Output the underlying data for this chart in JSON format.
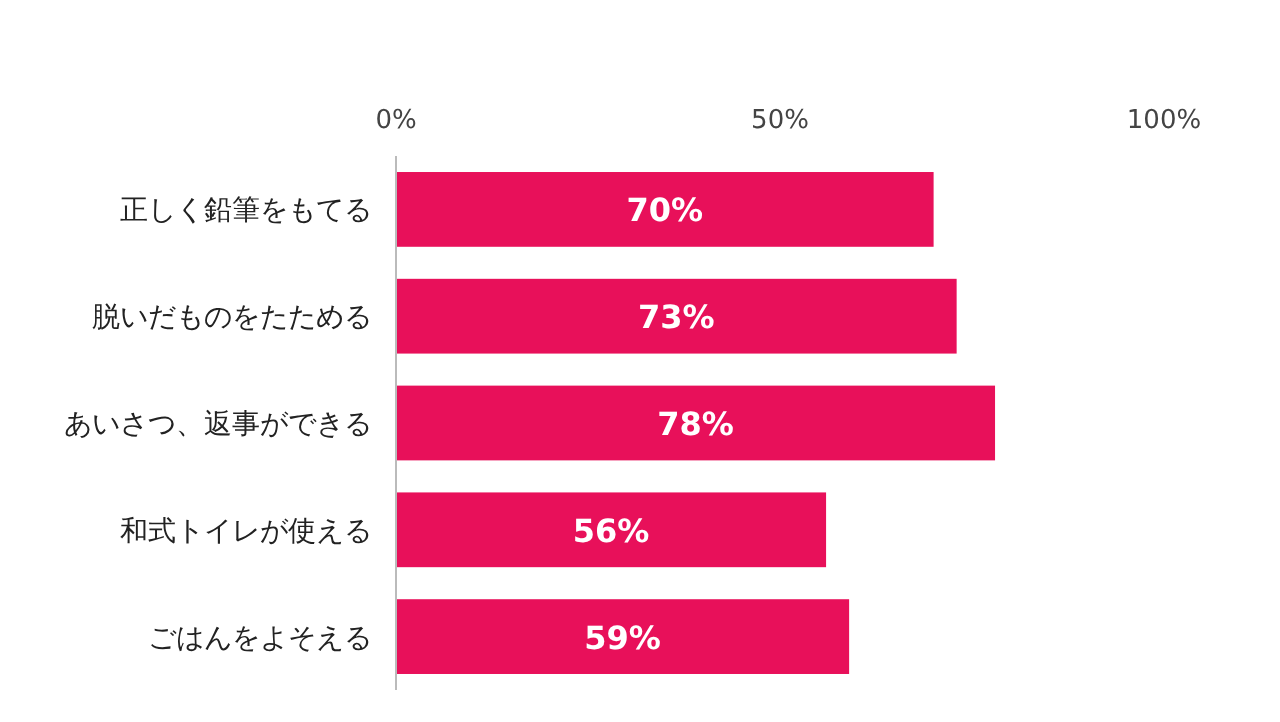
{
  "chart_data": {
    "type": "bar",
    "orientation": "horizontal",
    "categories": [
      "正しく鉛筆をもてる",
      "脱いだものをたためる",
      "あいさつ、返事ができる",
      "和式トイレが使える",
      "ごはんをよそえる"
    ],
    "values": [
      70,
      73,
      78,
      56,
      59
    ],
    "color": "#e8105a",
    "xlim": [
      0,
      100
    ],
    "xticks": [
      {
        "value": 0,
        "label": "0%"
      },
      {
        "value": 50,
        "label": "50%"
      },
      {
        "value": 100,
        "label": "100%"
      }
    ],
    "value_labels": [
      "70%",
      "73%",
      "78%",
      "56%",
      "59%"
    ]
  }
}
